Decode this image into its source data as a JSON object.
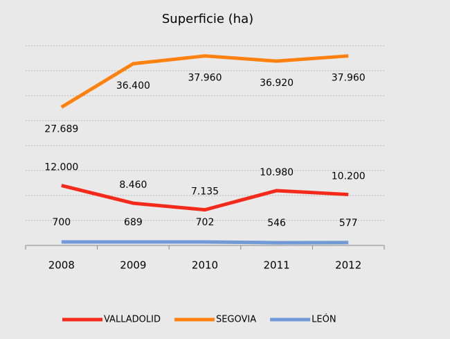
{
  "chart_data": {
    "type": "line",
    "title": "Superficie (ha)",
    "categories": [
      "2008",
      "2009",
      "2010",
      "2011",
      "2012"
    ],
    "series": [
      {
        "name": "VALLADOLID",
        "color": "#f62a1b",
        "values": [
          12000,
          8460,
          7135,
          10980,
          10200
        ],
        "value_labels": [
          "12.000",
          "8.460",
          "7.135",
          "10.980",
          "10.200"
        ]
      },
      {
        "name": "SEGOVIA",
        "color": "#ff8110",
        "values": [
          27689,
          36400,
          37960,
          36920,
          37960
        ],
        "value_labels": [
          "27.689",
          "36.400",
          "37.960",
          "36.920",
          "37.960"
        ]
      },
      {
        "name": "LEÓN",
        "color": "#7199d6",
        "values": [
          700,
          689,
          702,
          546,
          577
        ]
      }
    ],
    "ylim": [
      0,
      40000
    ],
    "yticks": [
      0,
      5000,
      10000,
      15000,
      20000,
      25000,
      30000,
      35000,
      40000
    ],
    "grid": true,
    "legend": "bottom"
  }
}
